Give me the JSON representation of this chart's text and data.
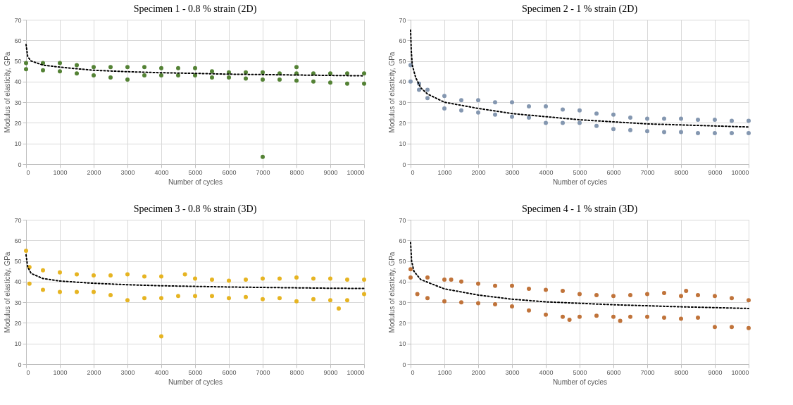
{
  "chart_data": [
    {
      "type": "scatter",
      "title": "Specimen 1 - 0.8 % strain (2D)",
      "xlabel": "Number of cycles",
      "ylabel": "Modulus of elasticity, GPa",
      "xlim": [
        0,
        10000
      ],
      "ylim": [
        0,
        70
      ],
      "xticks": [
        0,
        1000,
        2000,
        3000,
        4000,
        5000,
        6000,
        7000,
        8000,
        9000,
        10000
      ],
      "yticks": [
        0,
        10,
        20,
        30,
        40,
        50,
        60,
        70
      ],
      "grid": true,
      "series": [
        {
          "color": "#548235",
          "marker": "circle",
          "x": [
            0,
            500,
            1000,
            1500,
            2000,
            2500,
            3000,
            3500,
            4000,
            4500,
            5000,
            5500,
            6000,
            6500,
            7000,
            7500,
            8000,
            8500,
            9000,
            9500,
            10000,
            0,
            500,
            1000,
            1500,
            2000,
            2500,
            3000,
            3500,
            4000,
            4500,
            5000,
            5500,
            6000,
            6500,
            7000,
            7500,
            8000,
            8500,
            9000,
            9500,
            10000,
            7000,
            8000
          ],
          "values": [
            49,
            49,
            49,
            48,
            47,
            47,
            47,
            47,
            46.5,
            46.5,
            46.5,
            45,
            44.5,
            44.5,
            44.5,
            44,
            44,
            44,
            44,
            44,
            44,
            46,
            45.5,
            45,
            44,
            43,
            42,
            41,
            43,
            43,
            43,
            43,
            42,
            42,
            41.5,
            41,
            41,
            40.5,
            40,
            39.5,
            39,
            39,
            3.5,
            47
          ]
        },
        {
          "type": "line",
          "color": "#000000",
          "marker": "none",
          "line_style": "dotted",
          "x": [
            0,
            50,
            150,
            500,
            1000,
            2000,
            3000,
            4000,
            5000,
            6000,
            7000,
            8000,
            10000
          ],
          "values": [
            58,
            52,
            50,
            48,
            47,
            45.5,
            44.8,
            44.3,
            44,
            43.6,
            43.4,
            43.2,
            42.8
          ]
        }
      ]
    },
    {
      "type": "scatter",
      "title": "Specimen 2 - 1 % strain (2D)",
      "xlabel": "Number of cycles",
      "ylabel": "Modulus of elasticity, GPa",
      "xlim": [
        0,
        10000
      ],
      "ylim": [
        0,
        70
      ],
      "xticks": [
        0,
        1000,
        2000,
        3000,
        4000,
        5000,
        6000,
        7000,
        8000,
        9000,
        10000
      ],
      "yticks": [
        0,
        10,
        20,
        30,
        40,
        50,
        60,
        70
      ],
      "grid": true,
      "series": [
        {
          "color": "#8497b0",
          "marker": "circle",
          "x": [
            0,
            250,
            500,
            1000,
            1500,
            2000,
            2500,
            3000,
            3500,
            4000,
            4500,
            5000,
            5500,
            6000,
            6500,
            7000,
            7500,
            8000,
            8500,
            9000,
            9500,
            10000,
            0,
            250,
            500,
            1000,
            1500,
            2000,
            2500,
            3000,
            3500,
            4000,
            4500,
            5000,
            5500,
            6000,
            6500,
            7000,
            7500,
            8000,
            8500,
            9000,
            9500,
            10000
          ],
          "values": [
            48,
            39,
            36,
            33,
            31,
            31,
            30,
            30,
            28,
            28,
            26.5,
            26,
            24.5,
            24,
            22.5,
            22,
            22,
            22,
            21.5,
            21.5,
            21,
            21,
            40,
            36,
            32,
            27,
            26,
            25,
            24,
            23,
            22.5,
            20,
            20,
            20,
            18.5,
            17,
            16.5,
            16,
            15.5,
            15.5,
            15,
            15,
            15,
            15
          ]
        },
        {
          "type": "line",
          "color": "#000000",
          "marker": "none",
          "line_style": "dotted",
          "x": [
            0,
            20,
            50,
            150,
            300,
            500,
            1000,
            2000,
            3000,
            4000,
            5000,
            6000,
            7000,
            8000,
            9000,
            10000
          ],
          "values": [
            65,
            55,
            48,
            42,
            37,
            34,
            30,
            27,
            24.5,
            23,
            21.5,
            20.5,
            19.5,
            19,
            18.5,
            18
          ]
        }
      ]
    },
    {
      "type": "scatter",
      "title": "Specimen 3 - 0.8 % strain (3D)",
      "xlabel": "Number of cycles",
      "ylabel": "Modulus of elasticity, GPa",
      "xlim": [
        0,
        10000
      ],
      "ylim": [
        0,
        70
      ],
      "xticks": [
        0,
        1000,
        2000,
        3000,
        4000,
        5000,
        6000,
        7000,
        8000,
        9000,
        10000
      ],
      "yticks": [
        0,
        10,
        20,
        30,
        40,
        50,
        60,
        70
      ],
      "grid": true,
      "series": [
        {
          "color": "#e6b422",
          "marker": "circle",
          "x": [
            0,
            100,
            500,
            1000,
            1500,
            2000,
            2500,
            3000,
            3500,
            4000,
            4700,
            5000,
            5500,
            6000,
            6500,
            7000,
            7500,
            8000,
            8500,
            9000,
            9500,
            10000,
            100,
            500,
            1000,
            1500,
            2000,
            2500,
            3000,
            3500,
            4000,
            4500,
            5000,
            5500,
            6000,
            6500,
            7000,
            7500,
            8000,
            8500,
            9000,
            9500,
            10000,
            4000,
            9250
          ],
          "values": [
            55,
            47,
            45.5,
            44.5,
            43.5,
            43,
            43,
            43.5,
            42.5,
            42.5,
            43.5,
            41.5,
            41,
            40.5,
            41,
            41.5,
            41.5,
            42,
            41.5,
            41.5,
            41,
            41,
            39,
            36,
            35,
            35,
            35,
            33.5,
            31,
            32,
            32,
            33,
            33,
            33,
            32,
            32.5,
            31.5,
            32,
            30.5,
            31.5,
            31,
            31,
            34,
            13.5,
            27
          ]
        },
        {
          "type": "line",
          "color": "#000000",
          "marker": "none",
          "line_style": "dotted",
          "x": [
            0,
            50,
            150,
            500,
            1000,
            2000,
            3000,
            4000,
            5000,
            6000,
            7000,
            8000,
            9000,
            10000
          ],
          "values": [
            53,
            47,
            44,
            41.5,
            40.3,
            39.2,
            38.5,
            38,
            37.7,
            37.4,
            37.2,
            37,
            36.8,
            36.7
          ]
        }
      ]
    },
    {
      "type": "scatter",
      "title": "Specimen 4 - 1 % strain (3D)",
      "xlabel": "Number of cycles",
      "ylabel": "Modulus of elasticity, GPa",
      "xlim": [
        0,
        10000
      ],
      "ylim": [
        0,
        70
      ],
      "xticks": [
        0,
        1000,
        2000,
        3000,
        4000,
        5000,
        6000,
        7000,
        8000,
        9000,
        10000
      ],
      "yticks": [
        0,
        10,
        20,
        30,
        40,
        50,
        60,
        70
      ],
      "grid": true,
      "series": [
        {
          "color": "#c0733a",
          "marker": "circle",
          "x": [
            0,
            500,
            1000,
            1500,
            2000,
            2500,
            3000,
            3500,
            4000,
            4500,
            5000,
            5500,
            6000,
            6500,
            7000,
            7500,
            8000,
            8500,
            9000,
            9500,
            10000,
            0,
            200,
            500,
            1000,
            1500,
            2000,
            2500,
            3000,
            3500,
            4000,
            4500,
            5000,
            5500,
            6000,
            6500,
            7000,
            7500,
            8000,
            8500,
            9000,
            9500,
            10000,
            1200,
            4700,
            6200,
            8150
          ],
          "values": [
            46,
            42,
            41,
            40,
            39,
            38,
            38,
            36.5,
            36,
            35.5,
            34,
            33.5,
            33,
            33.5,
            34,
            34.5,
            33,
            33.5,
            33,
            32,
            31,
            42,
            34,
            32,
            30.5,
            30,
            29.5,
            29,
            28,
            26,
            24,
            23,
            23,
            23.5,
            23,
            23,
            23,
            22.5,
            22,
            22.5,
            18,
            18,
            17.5,
            41,
            21.5,
            21,
            35.5
          ]
        },
        {
          "type": "line",
          "color": "#000000",
          "marker": "none",
          "line_style": "dotted",
          "x": [
            0,
            30,
            100,
            300,
            1000,
            2000,
            3000,
            4000,
            5000,
            6000,
            7000,
            8000,
            9000,
            10000
          ],
          "values": [
            59,
            50,
            45,
            41,
            36.5,
            33.5,
            31.5,
            30.2,
            29.5,
            28.8,
            28.3,
            27.8,
            27.4,
            27
          ]
        }
      ]
    }
  ]
}
